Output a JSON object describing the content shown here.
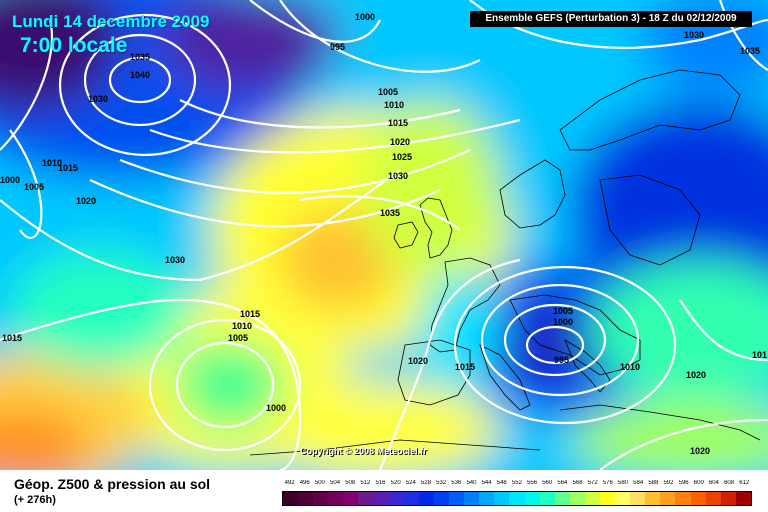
{
  "header": {
    "date": "Lundi 14 decembre 2009",
    "time": "7:00 locale",
    "model": "Ensemble GEFS (Perturbation 3)  -  18 Z du 02/12/2009"
  },
  "copyright": "Copyright © 2008 Meteociel.fr",
  "footer": {
    "product": "Géop. Z500 & pression au sol",
    "lead": "(+ 276h)"
  },
  "isobar_labels": [
    {
      "text": "1000"
    },
    {
      "text": "995"
    },
    {
      "text": "1035"
    },
    {
      "text": "1040"
    },
    {
      "text": "1030"
    },
    {
      "text": "1005"
    },
    {
      "text": "1010"
    },
    {
      "text": "1015"
    },
    {
      "text": "1020"
    },
    {
      "text": "1025"
    },
    {
      "text": "1030"
    },
    {
      "text": "1035"
    },
    {
      "text": "1030"
    },
    {
      "text": "1035"
    },
    {
      "text": "1010"
    },
    {
      "text": "1015"
    },
    {
      "text": "1000"
    },
    {
      "text": "1005"
    },
    {
      "text": "1020"
    },
    {
      "text": "1030"
    },
    {
      "text": "1015"
    },
    {
      "text": "1015"
    },
    {
      "text": "1010"
    },
    {
      "text": "1005"
    },
    {
      "text": "1000"
    },
    {
      "text": "1020"
    },
    {
      "text": "1015"
    },
    {
      "text": "1005"
    },
    {
      "text": "1000"
    },
    {
      "text": "995"
    },
    {
      "text": "1010"
    },
    {
      "text": "1020"
    },
    {
      "text": "1020"
    },
    {
      "text": "101"
    }
  ],
  "color_scale": {
    "labels": [
      "492",
      "496",
      "500",
      "504",
      "508",
      "512",
      "516",
      "520",
      "524",
      "528",
      "532",
      "536",
      "540",
      "544",
      "548",
      "552",
      "556",
      "560",
      "564",
      "568",
      "572",
      "576",
      "580",
      "584",
      "588",
      "592",
      "596",
      "600",
      "604",
      "608",
      "612"
    ],
    "colors": [
      "#3a0028",
      "#4d0038",
      "#600048",
      "#70005a",
      "#80006e",
      "#6a1a8a",
      "#5a1fb0",
      "#3c28d0",
      "#1e2ee0",
      "#0028e8",
      "#0040f0",
      "#005cf8",
      "#0080ff",
      "#00a8ff",
      "#00c8ff",
      "#00e4ff",
      "#00f8e8",
      "#20ffc0",
      "#60ff90",
      "#a0ff60",
      "#d0ff40",
      "#ffff20",
      "#ffff60",
      "#ffe060",
      "#ffc030",
      "#ffa020",
      "#ff8010",
      "#ff6000",
      "#f04000",
      "#d02000",
      "#a00000"
    ]
  }
}
